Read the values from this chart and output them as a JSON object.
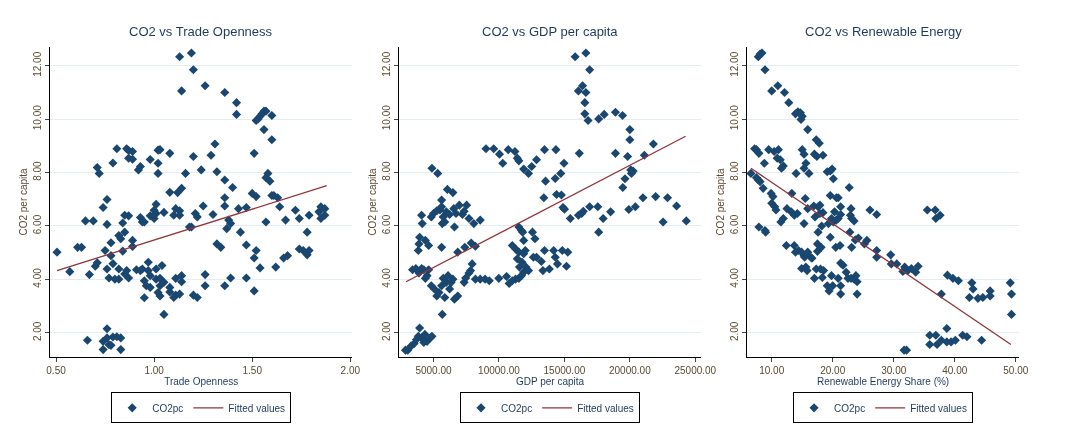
{
  "chart_data": [
    {
      "type": "scatter",
      "title": "CO2 vs Trade Openness",
      "xlabel": "Trade Openness",
      "ylabel": "CO2 per capita",
      "xlim": [
        0.47,
        2.01
      ],
      "ylim": [
        1.1,
        12.7
      ],
      "xticks": [
        {
          "value": 0.5,
          "label": "0.50"
        },
        {
          "value": 1,
          "label": "1.00"
        },
        {
          "value": 1.5,
          "label": "1.50"
        },
        {
          "value": 2,
          "label": "2.00"
        }
      ],
      "yticks": [
        {
          "value": 2,
          "label": "2.00"
        },
        {
          "value": 4,
          "label": "4.00"
        },
        {
          "value": 6,
          "label": "6.00"
        },
        {
          "value": 8,
          "label": "8.00"
        },
        {
          "value": 10,
          "label": "10.00"
        },
        {
          "value": 12,
          "label": "12.00"
        }
      ],
      "grid": "y",
      "legend": "bottom",
      "series": [
        {
          "name": "CO2pc",
          "type": "scatter",
          "marker": "diamond",
          "color": "#1a476f",
          "x": [
            0.505,
            0.57,
            0.61,
            0.63,
            0.65,
            0.66,
            0.67,
            0.69,
            0.7,
            0.71,
            0.71,
            0.72,
            0.74,
            0.76,
            0.75,
            0.76,
            0.74,
            0.74,
            0.76,
            0.76,
            0.77,
            0.79,
            0.81,
            0.83,
            0.83,
            0.78,
            0.76,
            0.77,
            0.78,
            0.78,
            0.79,
            0.79,
            0.81,
            0.8,
            0.82,
            0.82,
            0.82,
            0.83,
            0.85,
            0.84,
            0.85,
            0.84,
            0.86,
            0.87,
            0.87,
            0.89,
            0.89,
            0.87,
            0.85,
            0.86,
            0.87,
            0.89,
            0.89,
            0.92,
            0.93,
            0.91,
            0.93,
            0.94,
            0.93,
            0.94,
            0.95,
            0.95,
            0.96,
            0.97,
            0.98,
            0.97,
            0.98,
            0.95,
            0.98,
            0.98,
            1.0,
            1.01,
            1.0,
            1.01,
            1.01,
            1.01,
            1.02,
            1.03,
            1.02,
            1.02,
            1.02,
            1.03,
            1.03,
            1.04,
            1.03,
            1.05,
            1.05,
            1.05,
            1.08,
            1.08,
            1.08,
            1.08,
            1.1,
            1.11,
            1.13,
            1.12,
            1.14,
            1.13,
            1.11,
            1.1,
            1.11,
            1.13,
            1.13,
            1.14,
            1.14,
            1.14,
            1.16,
            1.18,
            1.19,
            1.19,
            1.2,
            1.2,
            1.21,
            1.22,
            1.2,
            1.22,
            1.24,
            1.25,
            1.26,
            1.26,
            1.26,
            1.29,
            1.31,
            1.3,
            1.32,
            1.32,
            1.34,
            1.36,
            1.36,
            1.36,
            1.36,
            1.37,
            1.38,
            1.39,
            1.36,
            1.39,
            1.4,
            1.42,
            1.42,
            1.43,
            1.44,
            1.47,
            1.47,
            1.47,
            1.51,
            1.5,
            1.52,
            1.51,
            1.52,
            1.51,
            1.52,
            1.53,
            1.54,
            1.55,
            1.56,
            1.57,
            1.56,
            1.57,
            1.58,
            1.59,
            1.57,
            1.54,
            1.6,
            1.61,
            1.6,
            1.6,
            1.62,
            1.63,
            1.64,
            1.66,
            1.68,
            1.67,
            1.72,
            1.74,
            1.74,
            1.76,
            1.78,
            1.78,
            1.79,
            1.79,
            1.84,
            1.85,
            1.85,
            1.87,
            1.87
          ],
          "values": [
            5.02,
            4.29,
            5.2,
            5.2,
            6.19,
            1.72,
            4.18,
            6.19,
            4.49,
            4.62,
            8.19,
            7.97,
            6.69,
            6.99,
            5.08,
            6.06,
            1.68,
            1.37,
            2.15,
            1.81,
            1.55,
            1.84,
            1.85,
            1.81,
            1.37,
            1.53,
            4.39,
            4.05,
            5.37,
            4.89,
            4.59,
            8.36,
            8.89,
            4.01,
            4.39,
            4.01,
            5.64,
            5.52,
            5.77,
            6.11,
            6.4,
            5.06,
            8.89,
            8.83,
            8.54,
            8.79,
            8.5,
            6.38,
            4.2,
            4.33,
            4.05,
            5.46,
            5.23,
            8.1,
            8.23,
            4.36,
            4.33,
            4.39,
            6.32,
            6.15,
            6.15,
            3.95,
            3.76,
            4.33,
            4.14,
            4.64,
            3.7,
            3.31,
            8.49,
            6.38,
            6.59,
            6.47,
            6.28,
            4.39,
            4.01,
            6.81,
            8.84,
            8.86,
            8.35,
            7.97,
            3.51,
            3.38,
            3.76,
            4.52,
            4.04,
            3.89,
            6.51,
            2.69,
            3.7,
            3.53,
            8.72,
            7.26,
            6.4,
            6.65,
            6.57,
            7.25,
            7.41,
            6.4,
            4.04,
            3.32,
            3.41,
            3.45,
            12.34,
            11.06,
            4.14,
            3.91,
            7.97,
            5.96,
            5.96,
            12.48,
            11.85,
            8.6,
            6.47,
            6.34,
            3.41,
            3.32,
            8.1,
            6.75,
            11.25,
            4.18,
            3.76,
            8.65,
            9.07,
            6.43,
            8.03,
            5.33,
            5.2,
            7.72,
            7.06,
            6.75,
            11.0,
            5.9,
            6.22,
            6.09,
            3.76,
            4.05,
            7.44,
            10.62,
            10.18,
            6.65,
            5.77,
            4.05,
            5.29,
            6.69,
            8.72,
            7.22,
            7.1,
            4.8,
            5.08,
            3.57,
            9.95,
            10.01,
            10.11,
            10.2,
            10.3,
            10.3,
            9.61,
            7.81,
            7.97,
            7.68,
            6.15,
            4.43,
            7.14,
            7.14,
            10.14,
            9.23,
            4.46,
            7.06,
            6.72,
            4.8,
            4.89,
            6.22,
            6.59,
            6.28,
            5.14,
            5.08,
            5.77,
            4.92,
            6.4,
            5.08,
            6.53,
            6.72,
            6.28,
            6.65,
            6.4
          ]
        },
        {
          "name": "Fitted values",
          "type": "line",
          "marker": "none",
          "color": "#90353b",
          "x": [
            0.505,
            1.88
          ],
          "values": [
            4.33,
            7.51
          ]
        }
      ]
    },
    {
      "type": "scatter",
      "title": "CO2 vs GDP per capita",
      "xlabel": "GDP per capita",
      "ylabel": "CO2 per capita",
      "xlim": [
        2400,
        25400
      ],
      "ylim": [
        1.1,
        12.7
      ],
      "xticks": [
        {
          "value": 5000,
          "label": "5000.00"
        },
        {
          "value": 10000,
          "label": "10000.00"
        },
        {
          "value": 15000,
          "label": "15000.00"
        },
        {
          "value": 20000,
          "label": "20000.00"
        },
        {
          "value": 25000,
          "label": "25000.00"
        }
      ],
      "yticks": [
        {
          "value": 2,
          "label": "2.00"
        },
        {
          "value": 4,
          "label": "4.00"
        },
        {
          "value": 6,
          "label": "6.00"
        },
        {
          "value": 8,
          "label": "8.00"
        },
        {
          "value": 10,
          "label": "10.00"
        },
        {
          "value": 12,
          "label": "12.00"
        }
      ],
      "grid": "y",
      "legend": "bottom",
      "series": [
        {
          "name": "CO2pc",
          "type": "scatter",
          "marker": "diamond",
          "color": "#1a476f",
          "x": [
            2860,
            3030,
            3280,
            3520,
            3700,
            3840,
            3940,
            4090,
            4260,
            4340,
            4510,
            4750,
            4880,
            3400,
            3650,
            3890,
            4090,
            4260,
            4380,
            4510,
            4630,
            3840,
            3890,
            3940,
            4140,
            4090,
            4380,
            4630,
            4880,
            5320,
            4830,
            5000,
            5250,
            5490,
            5620,
            5620,
            5740,
            5670,
            5860,
            5980,
            6230,
            6060,
            6480,
            6550,
            6600,
            6720,
            6970,
            7210,
            7340,
            7530,
            7710,
            8080,
            8570,
            5620,
            5670,
            4830,
            5070,
            5250,
            5420,
            5620,
            5740,
            5860,
            5980,
            6110,
            6230,
            6350,
            6480,
            6600,
            6850,
            6850,
            7340,
            7460,
            7710,
            7830,
            7950,
            7390,
            7880,
            8200,
            8200,
            8570,
            8940,
            9260,
            9010,
            9600,
            10040,
            10290,
            10710,
            11220,
            11400,
            11520,
            11890,
            12260,
            12500,
            12870,
            9990,
            10580,
            10780,
            11020,
            11270,
            11020,
            11270,
            11400,
            11520,
            11520,
            11720,
            11810,
            11890,
            11890,
            12010,
            11770,
            11570,
            11520,
            11720,
            11890,
            12060,
            12260,
            12560,
            12750,
            12630,
            12870,
            13240,
            13360,
            13480,
            13850,
            13430,
            13560,
            13480,
            14300,
            14350,
            14400,
            14770,
            14720,
            14970,
            14890,
            15010,
            14180,
            14300,
            14470,
            14840,
            15160,
            15260,
            15450,
            16070,
            16320,
            16440,
            16930,
            17550,
            17620,
            17960,
            18530,
            15820,
            16140,
            16070,
            16390,
            16640,
            16560,
            16560,
            16640,
            16810,
            16930,
            17620,
            18040,
            18900,
            19440,
            18900,
            19460,
            19630,
            19830,
            20000,
            20000,
            20070,
            20120,
            20250,
            19920,
            20420,
            21000,
            21110,
            21800,
            21970,
            22540,
            22880,
            23570,
            24310
          ],
          "values": [
            1.35,
            1.35,
            1.5,
            1.6,
            1.75,
            1.87,
            2.18,
            1.81,
            1.64,
            1.94,
            1.68,
            1.81,
            1.87,
            4.36,
            4.41,
            4.24,
            4.41,
            4.36,
            4.04,
            4.14,
            4.36,
            5.08,
            5.33,
            5.58,
            6.09,
            6.4,
            5.46,
            5.27,
            8.16,
            7.97,
            6.34,
            6.47,
            6.57,
            6.6,
            6.97,
            6.72,
            6.34,
            6.09,
            6.15,
            6.53,
            6.43,
            7.37,
            7.25,
            6.65,
            5.96,
            6.47,
            6.78,
            6.43,
            6.55,
            6.78,
            6.28,
            6.09,
            6.22,
            5.2,
            2.69,
            3.76,
            3.64,
            3.38,
            3.51,
            3.76,
            4.04,
            3.32,
            3.89,
            4.14,
            3.64,
            3.89,
            4.01,
            3.26,
            3.38,
            5.02,
            3.89,
            4.05,
            4.24,
            4.33,
            4.58,
            5.2,
            5.36,
            5.24,
            4.01,
            4.01,
            4.01,
            3.95,
            8.89,
            8.89,
            8.69,
            8.35,
            8.86,
            8.79,
            8.54,
            8.44,
            8.13,
            7.97,
            8.23,
            8.48,
            4.04,
            4.11,
            3.85,
            3.95,
            4.01,
            5.27,
            5.14,
            4.77,
            5.02,
            5.96,
            5.83,
            5.77,
            5.46,
            4.96,
            5.08,
            4.64,
            4.46,
            4.04,
            4.14,
            4.27,
            4.46,
            4.33,
            5.77,
            5.52,
            4.83,
            4.83,
            4.67,
            4.33,
            5.08,
            4.39,
            7.06,
            7.68,
            8.86,
            7.78,
            8.86,
            7.18,
            7.16,
            7.97,
            8.35,
            6.69,
            6.63,
            5.08,
            4.83,
            4.58,
            5.08,
            4.49,
            5.02,
            6.28,
            6.4,
            6.47,
            6.55,
            6.72,
            6.72,
            5.77,
            6.28,
            6.53,
            12.34,
            8.72,
            11.06,
            11.25,
            12.48,
            10.62,
            10.2,
            11.0,
            9.95,
            11.85,
            10.01,
            10.18,
            10.26,
            10.14,
            8.72,
            7.44,
            7.77,
            8.6,
            9.61,
            9.23,
            8.1,
            7.97,
            8.06,
            6.62,
            6.72,
            7.06,
            8.65,
            9.07,
            7.1,
            6.15,
            7.06,
            6.75,
            6.19
          ]
        },
        {
          "name": "Fitted values",
          "type": "line",
          "marker": "none",
          "color": "#90353b",
          "x": [
            2900,
            24260
          ],
          "values": [
            3.91,
            9.36
          ]
        }
      ]
    },
    {
      "type": "scatter",
      "title": "CO2 vs Renewable Energy",
      "xlabel": "Renewable Energy Share (%)",
      "ylabel": "CO2 per capita",
      "xlim": [
        5.9,
        50.6
      ],
      "ylim": [
        1.1,
        12.7
      ],
      "xticks": [
        {
          "value": 10,
          "label": "10.00"
        },
        {
          "value": 20,
          "label": "20.00"
        },
        {
          "value": 30,
          "label": "30.00"
        },
        {
          "value": 40,
          "label": "40.00"
        },
        {
          "value": 50,
          "label": "50.00"
        }
      ],
      "yticks": [
        {
          "value": 2,
          "label": "2.00"
        },
        {
          "value": 4,
          "label": "4.00"
        },
        {
          "value": 6,
          "label": "6.00"
        },
        {
          "value": 8,
          "label": "8.00"
        },
        {
          "value": 10,
          "label": "10.00"
        },
        {
          "value": 12,
          "label": "12.00"
        }
      ],
      "grid": "y",
      "legend": "bottom",
      "series": [
        {
          "name": "CO2pc",
          "type": "scatter",
          "marker": "diamond",
          "color": "#1a476f",
          "x": [
            6.6,
            7.2,
            7.5,
            7.5,
            7.9,
            7.8,
            8.1,
            8.6,
            8.8,
            7.9,
            8.9,
            9.0,
            7.8,
            8.1,
            8.4,
            8.9,
            9.5,
            10.4,
            11.1,
            10.9,
            11.4,
            11.6,
            11.9,
            10.0,
            11.0,
            12.1,
            12.8,
            9.9,
            10.2,
            10.0,
            10.5,
            10.7,
            11.5,
            11.9,
            12.4,
            12.5,
            13.3,
            13.2,
            13.7,
            14.2,
            14.0,
            13.7,
            13.9,
            13.9,
            14.3,
            14.7,
            14.8,
            15.0,
            15.9,
            15.0,
            15.3,
            15.3,
            15.6,
            16.1,
            15.3,
            15.5,
            15.9,
            14.4,
            14.9,
            15.3,
            15.4,
            15.9,
            16.4,
            16.6,
            14.9,
            15.6,
            15.8,
            17.0,
            17.4,
            17.3,
            17.8,
            18.4,
            16.9,
            17.1,
            17.6,
            17.9,
            17.9,
            17.6,
            18.2,
            18.4,
            17.5,
            17.5,
            18.1,
            17.0,
            17.3,
            18.0,
            18.5,
            18.3,
            19.1,
            19.4,
            19.8,
            20.0,
            19.1,
            19.6,
            19.9,
            20.1,
            19.6,
            19.6,
            19.3,
            19.8,
            20.1,
            20.3,
            20.6,
            20.9,
            20.9,
            20.6,
            21.3,
            21.3,
            21.2,
            20.5,
            20.9,
            21.3,
            21.3,
            21.3,
            21.7,
            22.2,
            22.5,
            23.0,
            23.5,
            23.8,
            24.0,
            24.0,
            22.7,
            23.0,
            22.9,
            23.1,
            23.5,
            22.8,
            23.1,
            23.7,
            24.2,
            25.2,
            25.6,
            26.1,
            27.2,
            27.2,
            27.2,
            29.5,
            29.6,
            30.5,
            31.5,
            31.8,
            32.3,
            32.9,
            33.6,
            34.0,
            31.7,
            32.1,
            35.5,
            36.8,
            36.9,
            37.6,
            35.9,
            35.9,
            36.9,
            37.1,
            37.8,
            38.7,
            39.4,
            40.1,
            38.7,
            41.3,
            42.0,
            44.4,
            37.8,
            38.8,
            39.7,
            40.6,
            42.4,
            42.8,
            43.0,
            43.8,
            44.6,
            45.8,
            45.8,
            49.1,
            49.3,
            49.3
          ],
          "values": [
            7.97,
            8.89,
            8.86,
            7.81,
            8.72,
            7.72,
            7.66,
            7.41,
            8.35,
            5.96,
            5.83,
            5.77,
            12.34,
            12.44,
            12.48,
            11.85,
            8.86,
            8.79,
            8.86,
            8.54,
            8.48,
            8.16,
            8.25,
            11.06,
            11.25,
            11.0,
            10.62,
            7.22,
            7.1,
            6.85,
            6.72,
            6.6,
            6.15,
            6.28,
            5.27,
            6.65,
            7.22,
            6.53,
            6.4,
            6.47,
            7.97,
            5.27,
            5.02,
            10.2,
            10.28,
            10.24,
            9.99,
            10.11,
            9.61,
            8.86,
            8.69,
            8.16,
            8.35,
            7.97,
            6.09,
            7.03,
            6.65,
            5.08,
            5.02,
            4.89,
            4.83,
            5.02,
            4.83,
            4.79,
            4.41,
            4.46,
            4.33,
            8.69,
            8.6,
            9.23,
            9.1,
            8.65,
            6.75,
            6.34,
            6.72,
            6.78,
            6.47,
            5.77,
            6.0,
            6.5,
            5.33,
            5.05,
            5.2,
            4.04,
            4.39,
            4.39,
            4.33,
            4.07,
            3.76,
            3.57,
            4.14,
            3.76,
            8.03,
            8.06,
            8.13,
            7.77,
            7.14,
            5.58,
            6.09,
            6.28,
            6.15,
            6.53,
            6.22,
            6.28,
            7.06,
            7.06,
            6.43,
            6.72,
            5.27,
            5.2,
            4.04,
            3.76,
            3.45,
            4.61,
            4.53,
            4.27,
            4.04,
            4.04,
            4.01,
            4.14,
            3.91,
            3.45,
            7.44,
            6.65,
            6.4,
            6.28,
            6.19,
            5.77,
            5.2,
            5.48,
            5.55,
            5.33,
            5.46,
            6.6,
            6.43,
            5.08,
            4.83,
            4.92,
            4.58,
            4.58,
            4.3,
            4.46,
            4.33,
            4.41,
            4.27,
            4.49,
            1.35,
            1.35,
            6.6,
            6.6,
            6.28,
            6.4,
            1.91,
            1.56,
            1.91,
            1.56,
            1.72,
            1.66,
            1.66,
            1.72,
            2.16,
            1.91,
            1.85,
            1.72,
            3.45,
            4.16,
            4.04,
            3.95,
            3.32,
            3.87,
            3.64,
            3.29,
            3.32,
            3.57,
            3.38,
            3.87,
            3.45,
            2.69
          ]
        },
        {
          "name": "Fitted values",
          "type": "line",
          "marker": "none",
          "color": "#90353b",
          "x": [
            6.6,
            49.2
          ],
          "values": [
            8.16,
            1.56
          ]
        }
      ]
    }
  ]
}
